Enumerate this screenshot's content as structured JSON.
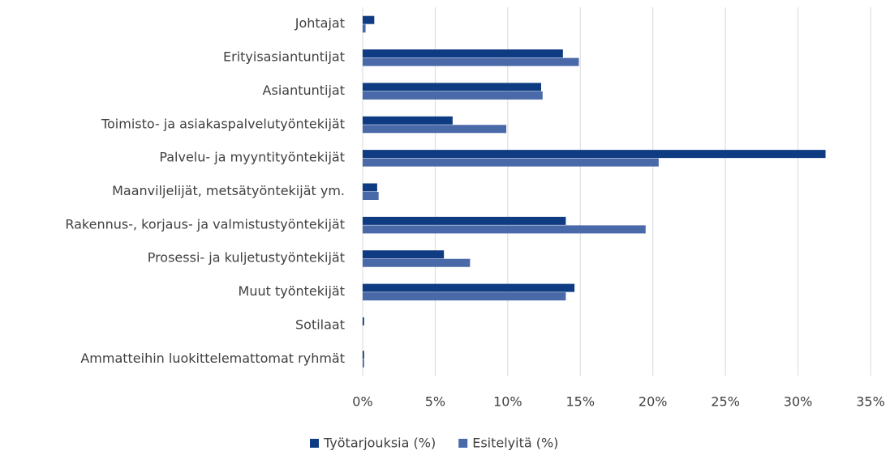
{
  "chart_data": {
    "type": "bar",
    "orientation": "horizontal",
    "categories": [
      "Johtajat",
      "Erityisasiantuntijat",
      "Asiantuntijat",
      "Toimisto- ja asiakaspalvelutyöntekijät",
      "Palvelu- ja myyntityöntekijät",
      "Maanviljelijät, metsätyöntekijät ym.",
      "Rakennus-, korjaus- ja valmistustyöntekijät",
      "Prosessi- ja kuljetustyöntekijät",
      "Muut työntekijät",
      "Sotilaat",
      "Ammatteihin luokittelemattomat ryhmät"
    ],
    "series": [
      {
        "name": "Työtarjouksia (%)",
        "color": "#0f3b82",
        "values": [
          0.8,
          13.8,
          12.3,
          6.2,
          31.9,
          1.0,
          14.0,
          5.6,
          14.6,
          0.1,
          0.1
        ]
      },
      {
        "name": "Esitelyitä (%)",
        "color": "#4a69a9",
        "values": [
          0.2,
          14.9,
          12.4,
          9.9,
          20.4,
          1.1,
          19.5,
          7.4,
          14.0,
          0.0,
          0.1
        ]
      }
    ],
    "xlim": [
      0,
      35
    ],
    "xticks": [
      {
        "value": 0,
        "label": "0%"
      },
      {
        "value": 5,
        "label": "5%"
      },
      {
        "value": 10,
        "label": "10%"
      },
      {
        "value": 15,
        "label": "15%"
      },
      {
        "value": 20,
        "label": "20%"
      },
      {
        "value": 25,
        "label": "25%"
      },
      {
        "value": 30,
        "label": "30%"
      },
      {
        "value": 35,
        "label": "35%"
      }
    ],
    "grid": true,
    "legend": "bottom"
  }
}
